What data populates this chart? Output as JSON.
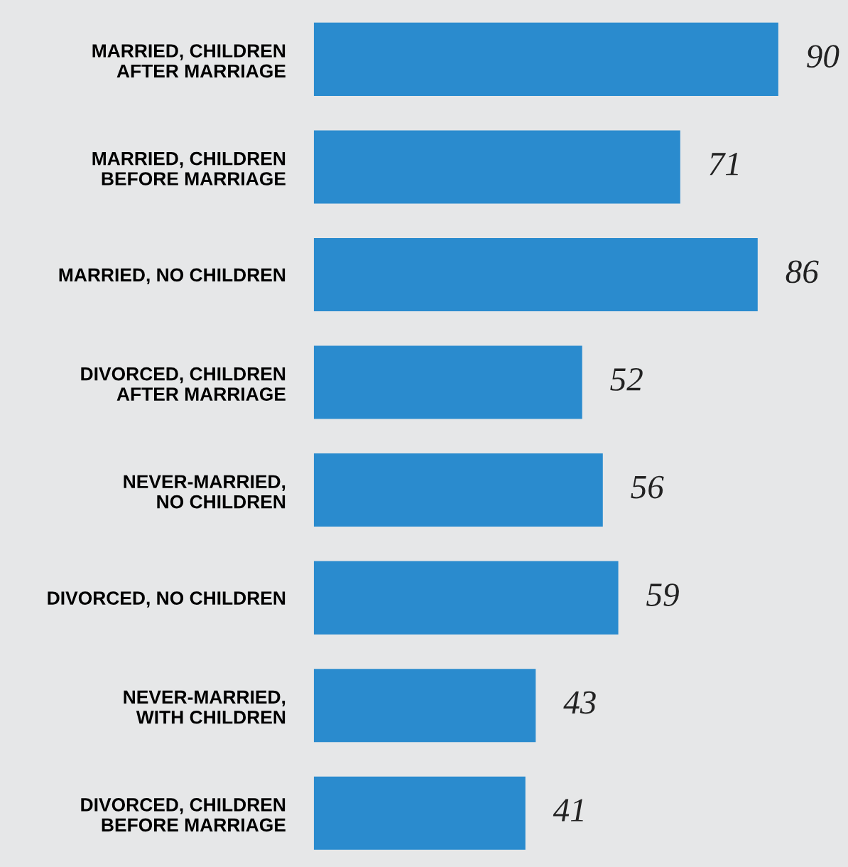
{
  "chart_data": {
    "type": "bar",
    "orientation": "horizontal",
    "categories": [
      "MARRIED, CHILDREN\nAFTER MARRIAGE",
      "MARRIED, CHILDREN\nBEFORE MARRIAGE",
      "MARRIED, NO CHILDREN",
      "DIVORCED, CHILDREN\nAFTER MARRIAGE",
      "NEVER-MARRIED,\nNO CHILDREN",
      "DIVORCED, NO CHILDREN",
      "NEVER-MARRIED,\nWITH CHILDREN",
      "DIVORCED, CHILDREN\nBEFORE MARRIAGE"
    ],
    "values": [
      90,
      71,
      86,
      52,
      56,
      59,
      43,
      41
    ],
    "color": "#2a8bce",
    "data_labels": true,
    "grid": false,
    "legend": false
  }
}
